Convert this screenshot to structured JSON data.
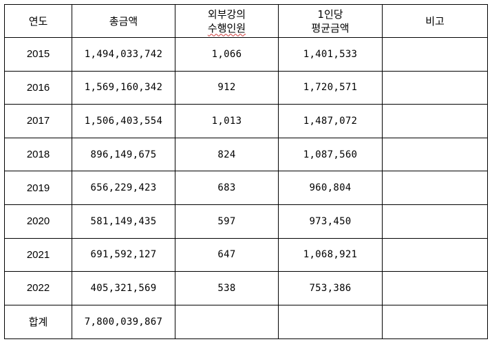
{
  "headers": {
    "year": "연도",
    "total_amount": "총금액",
    "lecturers_line1": "외부강의",
    "lecturers_line2": "수행인원",
    "per_person_line1": "1인당",
    "per_person_line2": "평균금액",
    "note": "비고"
  },
  "rows": [
    {
      "year": "2015",
      "total": "1,494,033,742",
      "count": "1,066",
      "avg": "1,401,533",
      "note": ""
    },
    {
      "year": "2016",
      "total": "1,569,160,342",
      "count": "912",
      "avg": "1,720,571",
      "note": ""
    },
    {
      "year": "2017",
      "total": "1,506,403,554",
      "count": "1,013",
      "avg": "1,487,072",
      "note": ""
    },
    {
      "year": "2018",
      "total": "896,149,675",
      "count": "824",
      "avg": "1,087,560",
      "note": ""
    },
    {
      "year": "2019",
      "total": "656,229,423",
      "count": "683",
      "avg": "960,804",
      "note": ""
    },
    {
      "year": "2020",
      "total": "581,149,435",
      "count": "597",
      "avg": "973,450",
      "note": ""
    },
    {
      "year": "2021",
      "total": "691,592,127",
      "count": "647",
      "avg": "1,068,921",
      "note": ""
    },
    {
      "year": "2022",
      "total": "405,321,569",
      "count": "538",
      "avg": "753,386",
      "note": ""
    }
  ],
  "total_row": {
    "label": "합계",
    "total": "7,800,039,867",
    "count": "",
    "avg": "",
    "note": ""
  }
}
